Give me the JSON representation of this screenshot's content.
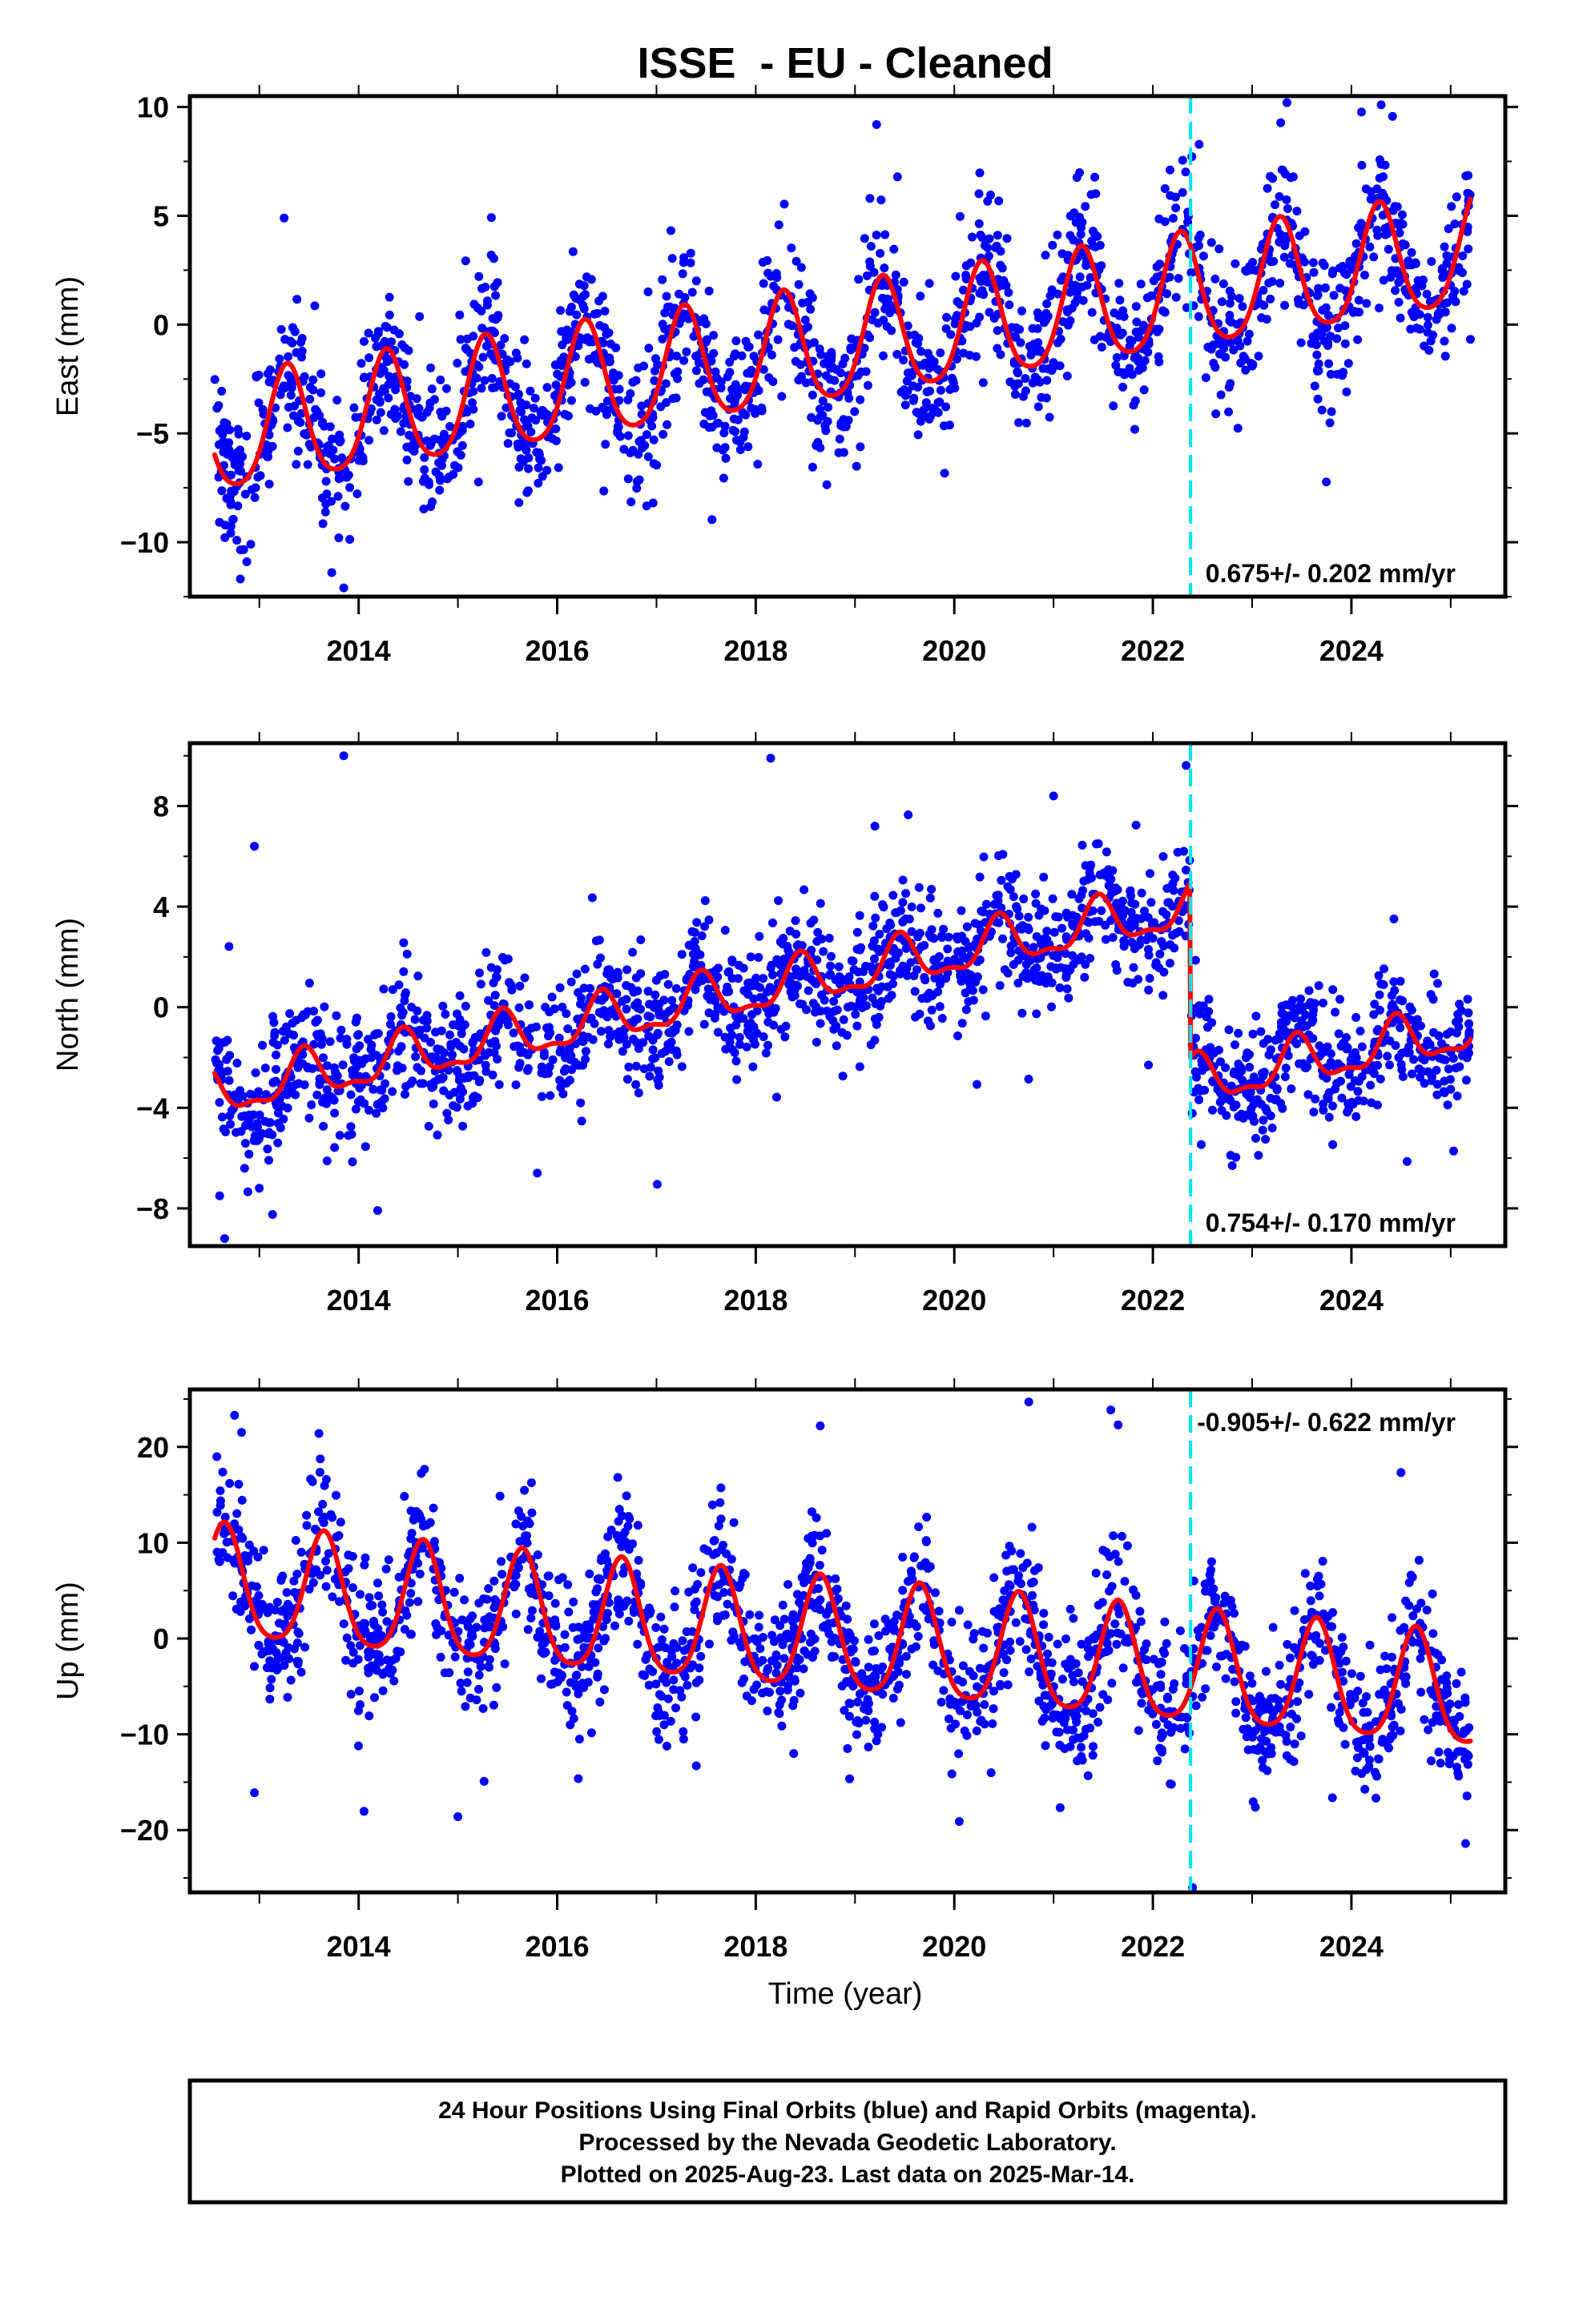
{
  "chart_data": [
    {
      "type": "scatter",
      "title": "ISSE  - EU - Cleaned",
      "ylabel": "East (mm)",
      "xlabel": "",
      "xlim": [
        2012.3,
        2025.55
      ],
      "ylim": [
        -12.5,
        10.5
      ],
      "yticks": [
        10,
        5,
        0,
        -5,
        -10
      ],
      "yticklabels": [
        "10",
        "5",
        "0",
        "−5",
        "−10"
      ],
      "xticks": [
        2014,
        2016,
        2018,
        2020,
        2022,
        2024
      ],
      "xticklabels": [
        "2014",
        "2016",
        "2018",
        "2020",
        "2022",
        "2024"
      ],
      "rate_label": "0.675+/- 0.202 mm/yr",
      "colors": {
        "points": "#0000ff",
        "model": "#ff0000",
        "offset": "#00e5ee"
      },
      "data_range": [
        2012.55,
        2025.2
      ],
      "offset_epoch": 2022.38,
      "model": {
        "trend_slope": 0.675,
        "trend_at_2012_5": -5.3,
        "pieces": [
          {
            "from": 2012.55,
            "to": 2025.2,
            "intercept_shift": 0
          }
        ],
        "annual_amplitude": 2.6,
        "annual_peak": 2012.28,
        "semiannual_amplitude": 0.4,
        "semiannual_peak": 2012.28
      },
      "scatter_sigma": 1.6,
      "outliers": [
        [
          2013.25,
          4.9
        ],
        [
          2013.85,
          -12.1
        ],
        [
          2019.15,
          5.8
        ],
        [
          2023.35,
          10.2
        ],
        [
          2024.3,
          10.1
        ],
        [
          2013.8,
          -9.8
        ],
        [
          2023.8,
          -4.0
        ]
      ]
    },
    {
      "type": "scatter",
      "title": "",
      "ylabel": "North (mm)",
      "xlabel": "",
      "xlim": [
        2012.3,
        2025.55
      ],
      "ylim": [
        -9.5,
        10.5
      ],
      "yticks": [
        8,
        4,
        0,
        -4,
        -8
      ],
      "yticklabels": [
        "8",
        "4",
        "0",
        "−4",
        "−8"
      ],
      "xticks": [
        2014,
        2016,
        2018,
        2020,
        2022,
        2024
      ],
      "xticklabels": [
        "2014",
        "2016",
        "2018",
        "2020",
        "2022",
        "2024"
      ],
      "rate_label": "0.754+/- 0.170 mm/yr",
      "colors": {
        "points": "#0000ff",
        "model": "#ff0000",
        "offset": "#00e5ee"
      },
      "data_range": [
        2012.55,
        2025.2
      ],
      "offset_epoch": 2022.38,
      "model": {
        "trend_slope": 0.754,
        "trend_at_2012_5": -3.5,
        "pieces": [
          {
            "from": 2012.55,
            "to": 2022.38,
            "intercept_shift": 0
          },
          {
            "from": 2022.38,
            "to": 2025.2,
            "intercept_shift": -7.0
          }
        ],
        "annual_amplitude": 0.9,
        "annual_peak": 2012.45,
        "semiannual_amplitude": 0.35,
        "semiannual_peak": 2012.45
      },
      "scatter_sigma": 1.2,
      "outliers": [
        [
          2012.95,
          6.4
        ],
        [
          2013.85,
          10.0
        ],
        [
          2018.15,
          9.9
        ],
        [
          2021.0,
          8.4
        ],
        [
          2019.2,
          7.2
        ],
        [
          2012.65,
          -9.2
        ],
        [
          2012.6,
          -7.5
        ],
        [
          2013.0,
          -7.2
        ],
        [
          2015.8,
          -6.6
        ],
        [
          2022.8,
          -6.3
        ]
      ]
    },
    {
      "type": "scatter",
      "title": "",
      "ylabel": "Up (mm)",
      "xlabel": "Time (year)",
      "xlim": [
        2012.3,
        2025.55
      ],
      "ylim": [
        -26.5,
        26.0
      ],
      "yticks": [
        20,
        10,
        0,
        -10,
        -20
      ],
      "yticklabels": [
        "20",
        "10",
        "0",
        "−10",
        "−20"
      ],
      "xticks": [
        2014,
        2016,
        2018,
        2020,
        2022,
        2024
      ],
      "xticklabels": [
        "2014",
        "2016",
        "2018",
        "2020",
        "2022",
        "2024"
      ],
      "rate_label": "-0.905+/- 0.622 mm/yr",
      "colors": {
        "points": "#0000ff",
        "model": "#ff0000",
        "offset": "#00e5ee"
      },
      "data_range": [
        2012.55,
        2025.2
      ],
      "offset_epoch": 2022.38,
      "model": {
        "trend_slope": -0.905,
        "trend_at_2012_5": 5.5,
        "pieces": [
          {
            "from": 2012.55,
            "to": 2025.2,
            "intercept_shift": 0
          }
        ],
        "annual_amplitude": 5.8,
        "annual_peak": 2012.65,
        "semiannual_amplitude": 1.0,
        "semiannual_peak": 2012.65
      },
      "scatter_sigma": 3.6,
      "outliers": [
        [
          2012.75,
          23.3
        ],
        [
          2013.6,
          21.4
        ],
        [
          2018.65,
          22.2
        ],
        [
          2020.75,
          24.7
        ],
        [
          2021.65,
          22.3
        ],
        [
          2022.4,
          -26.0
        ],
        [
          2020.05,
          -19.1
        ],
        [
          2025.15,
          -21.4
        ],
        [
          2015.0,
          -18.6
        ],
        [
          2012.95,
          -16.1
        ]
      ]
    }
  ],
  "footer": {
    "line1": "24 Hour Positions Using Final Orbits (blue) and Rapid Orbits (magenta).",
    "line2": "Processed by the Nevada Geodetic Laboratory.",
    "line3": "Plotted on 2025-Aug-23. Last data on 2025-Mar-14."
  }
}
